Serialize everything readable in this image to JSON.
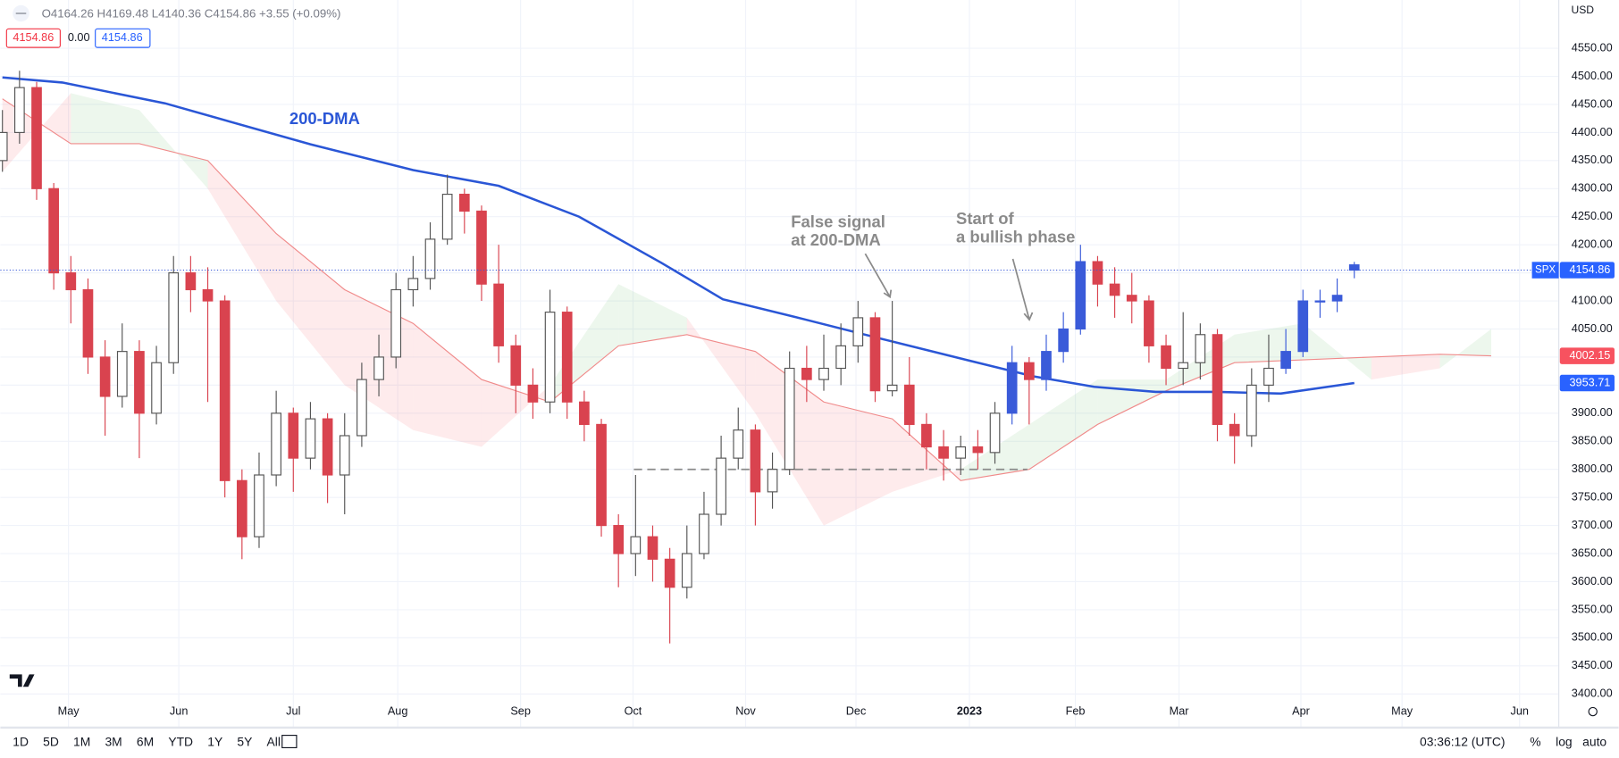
{
  "header": {
    "ohlc": "O4164.26 H4169.48 L4140.36 C4154.86 +3.55 (+0.09%)",
    "box_left": "4154.86",
    "box_mid": "0.00",
    "box_right": "4154.86",
    "currency": "USD"
  },
  "toolbar": {
    "ranges": [
      "1D",
      "5D",
      "1M",
      "3M",
      "6M",
      "YTD",
      "1Y",
      "5Y",
      "All"
    ],
    "clock": "03:36:12 (UTC)",
    "percent": "%",
    "log": "log",
    "auto": "auto"
  },
  "chart_data": {
    "type": "candlestick",
    "symbol": "SPX",
    "annotations": {
      "dma": "200-DMA",
      "false_signal": [
        "False signal",
        "at 200-DMA"
      ],
      "bullish": [
        "Start of",
        "a bullish phase"
      ]
    },
    "open": [
      4350,
      4400,
      4480,
      4300,
      4150,
      4120,
      4000,
      3930,
      4010,
      3900,
      3990,
      4150,
      4120,
      4100,
      3780,
      3680,
      3790,
      3900,
      3820,
      3890,
      3790,
      3860,
      3960,
      4000,
      4120,
      4140,
      4210,
      4290,
      4260,
      4130,
      4020,
      3950,
      3920,
      4080,
      3920,
      3880,
      3700,
      3650,
      3680,
      3640,
      3590,
      3650,
      3720,
      3820,
      3870,
      3760,
      3800,
      3980,
      3960,
      3980,
      4020,
      4070,
      3940,
      3950,
      3880,
      3840,
      3820,
      3840,
      3830,
      3900,
      3990,
      3960,
      4010,
      4050,
      4170,
      4130,
      4110,
      4100,
      4020,
      3980,
      3990,
      4040,
      3880,
      3860,
      3950,
      3980,
      4010,
      4100,
      4100,
      4164.26
    ],
    "high": [
      4440,
      4510,
      4490,
      4310,
      4180,
      4140,
      4030,
      4060,
      4030,
      4020,
      4180,
      4180,
      4160,
      4110,
      3800,
      3830,
      3940,
      3910,
      3920,
      3900,
      3900,
      3990,
      4040,
      4150,
      4180,
      4240,
      4325,
      4300,
      4270,
      4200,
      4040,
      3980,
      4120,
      4090,
      3940,
      3890,
      3720,
      3790,
      3700,
      3660,
      3700,
      3760,
      3860,
      3910,
      3880,
      3830,
      4010,
      4020,
      4040,
      4060,
      4100,
      4080,
      4100,
      4000,
      3900,
      3870,
      3860,
      3870,
      3920,
      4020,
      4000,
      4040,
      4080,
      4200,
      4180,
      4160,
      4150,
      4110,
      4040,
      4080,
      4060,
      4050,
      3900,
      3980,
      4040,
      4050,
      4120,
      4120,
      4140,
      4169.48
    ],
    "low": [
      4330,
      4380,
      4280,
      4120,
      4060,
      3970,
      3860,
      3910,
      3820,
      3880,
      3970,
      4080,
      3920,
      3750,
      3640,
      3660,
      3770,
      3760,
      3800,
      3740,
      3720,
      3840,
      3930,
      3980,
      4090,
      4120,
      4200,
      4220,
      4100,
      3990,
      3900,
      3890,
      3900,
      3890,
      3850,
      3680,
      3590,
      3610,
      3600,
      3490,
      3570,
      3640,
      3700,
      3800,
      3700,
      3730,
      3790,
      3920,
      3940,
      3950,
      3990,
      3920,
      3930,
      3860,
      3800,
      3780,
      3790,
      3800,
      3810,
      3880,
      3880,
      3940,
      3990,
      4040,
      4090,
      4070,
      4060,
      3990,
      3950,
      3950,
      3960,
      3850,
      3810,
      3840,
      3920,
      3970,
      4000,
      4070,
      4080,
      4140.36
    ],
    "close": [
      4400,
      4480,
      4300,
      4150,
      4120,
      4000,
      3930,
      4010,
      3900,
      3990,
      4150,
      4120,
      4100,
      3780,
      3680,
      3790,
      3900,
      3820,
      3890,
      3790,
      3860,
      3960,
      4000,
      4120,
      4140,
      4210,
      4290,
      4260,
      4130,
      4020,
      3950,
      3920,
      4080,
      3920,
      3880,
      3700,
      3650,
      3680,
      3640,
      3590,
      3650,
      3720,
      3820,
      3870,
      3760,
      3800,
      3980,
      3960,
      3980,
      4020,
      4070,
      3940,
      3950,
      3880,
      3840,
      3820,
      3840,
      3830,
      3900,
      3990,
      3960,
      4010,
      4050,
      4170,
      4130,
      4110,
      4100,
      4020,
      3980,
      3990,
      4040,
      3880,
      3860,
      3950,
      3980,
      4010,
      4100,
      4100,
      4110,
      4154.86
    ],
    "colors": [
      "#ffffff",
      "#ffffff",
      "#d9434f",
      "#d9434f",
      "#d9434f",
      "#d9434f",
      "#d9434f",
      "#ffffff",
      "#d9434f",
      "#ffffff",
      "#ffffff",
      "#d9434f",
      "#d9434f",
      "#d9434f",
      "#d9434f",
      "#ffffff",
      "#ffffff",
      "#d9434f",
      "#ffffff",
      "#d9434f",
      "#ffffff",
      "#ffffff",
      "#ffffff",
      "#ffffff",
      "#ffffff",
      "#ffffff",
      "#ffffff",
      "#d9434f",
      "#d9434f",
      "#d9434f",
      "#d9434f",
      "#d9434f",
      "#ffffff",
      "#d9434f",
      "#d9434f",
      "#d9434f",
      "#d9434f",
      "#ffffff",
      "#d9434f",
      "#d9434f",
      "#ffffff",
      "#ffffff",
      "#ffffff",
      "#ffffff",
      "#d9434f",
      "#ffffff",
      "#ffffff",
      "#d9434f",
      "#ffffff",
      "#ffffff",
      "#ffffff",
      "#d9434f",
      "#ffffff",
      "#d9434f",
      "#d9434f",
      "#d9434f",
      "#ffffff",
      "#d9434f",
      "#ffffff",
      "#3a5bd9",
      "#d9434f",
      "#3a5bd9",
      "#3a5bd9",
      "#3a5bd9",
      "#d9434f",
      "#d9434f",
      "#d9434f",
      "#d9434f",
      "#d9434f",
      "#ffffff",
      "#ffffff",
      "#d9434f",
      "#d9434f",
      "#ffffff",
      "#ffffff",
      "#3a5bd9",
      "#3a5bd9",
      "#3a5bd9",
      "#3a5bd9",
      "#3a5bd9"
    ],
    "dma": {
      "color": "#2a56d6",
      "x": [
        0,
        3.5,
        9.5,
        18,
        24,
        29,
        33.7,
        38.5,
        42.1,
        46.9,
        51.7,
        56.6,
        60.2,
        63.8,
        67.4,
        71,
        74.7,
        79
      ],
      "values": [
        4498,
        4489,
        4452,
        4379,
        4333,
        4305,
        4250,
        4168,
        4103,
        4067,
        4030,
        3993,
        3966,
        3947,
        3938,
        3938,
        3935,
        3953.71
      ]
    },
    "cloud": {
      "bull_color": "rgba(76,175,80,0.1)",
      "bear_color": "rgba(242,54,69,0.1)",
      "line_color": "#f08a8a",
      "x": [
        0,
        4,
        8,
        12,
        16,
        20,
        24,
        28,
        32,
        36,
        40,
        44,
        48,
        52,
        56,
        60,
        64,
        68,
        72,
        76,
        80,
        84,
        87
      ],
      "span_a": [
        4330,
        4470,
        4440,
        4300,
        4100,
        3950,
        3870,
        3840,
        3950,
        4130,
        4070,
        3900,
        3700,
        3760,
        3800,
        3880,
        3960,
        3960,
        4040,
        4060,
        3960,
        3980,
        4050
      ],
      "span_b": [
        4460,
        4380,
        4380,
        4350,
        4220,
        4120,
        4060,
        3960,
        3920,
        4020,
        4040,
        4010,
        3920,
        3890,
        3780,
        3800,
        3880,
        3940,
        3990,
        3995,
        4000,
        4005,
        4002.15
      ]
    },
    "level": {
      "value": 3800,
      "from": 36.9,
      "to": 59.9
    },
    "xlim": [
      -0.12,
      90.95
    ],
    "ylim": [
      3341,
      4636
    ],
    "xticks": [
      {
        "value": 3.86,
        "label": "May"
      },
      {
        "value": 10.31,
        "label": "Jun"
      },
      {
        "value": 17.0,
        "label": "Jul"
      },
      {
        "value": 23.1,
        "label": "Aug"
      },
      {
        "value": 30.28,
        "label": "Sep"
      },
      {
        "value": 36.85,
        "label": "Oct"
      },
      {
        "value": 43.43,
        "label": "Nov"
      },
      {
        "value": 49.88,
        "label": "Dec"
      },
      {
        "value": 56.51,
        "label": "2023"
      },
      {
        "value": 62.7,
        "label": "Feb"
      },
      {
        "value": 68.76,
        "label": "Mar"
      },
      {
        "value": 75.88,
        "label": "Apr"
      },
      {
        "value": 81.79,
        "label": "May"
      },
      {
        "value": 88.66,
        "label": "Jun"
      }
    ],
    "yticks": [
      {
        "value": 3400,
        "label": "3400.00"
      },
      {
        "value": 3450,
        "label": "3450.00"
      },
      {
        "value": 3500,
        "label": "3500.00"
      },
      {
        "value": 3550,
        "label": "3550.00"
      },
      {
        "value": 3600,
        "label": "3600.00"
      },
      {
        "value": 3650,
        "label": "3650.00"
      },
      {
        "value": 3700,
        "label": "3700.00"
      },
      {
        "value": 3750,
        "label": "3750.00"
      },
      {
        "value": 3800,
        "label": "3800.00"
      },
      {
        "value": 3850,
        "label": "3850.00"
      },
      {
        "value": 3900,
        "label": "3900.00"
      },
      {
        "value": 3950,
        "label": "3950.00"
      },
      {
        "value": 4000,
        "label": "4000.00"
      },
      {
        "value": 4050,
        "label": "4050.00"
      },
      {
        "value": 4100,
        "label": "4100.00"
      },
      {
        "value": 4150,
        "label": "4150.00"
      },
      {
        "value": 4200,
        "label": "4200.00"
      },
      {
        "value": 4250,
        "label": "4250.00"
      },
      {
        "value": 4300,
        "label": "4300.00"
      },
      {
        "value": 4350,
        "label": "4350.00"
      },
      {
        "value": 4400,
        "label": "4400.00"
      },
      {
        "value": 4450,
        "label": "4450.00"
      },
      {
        "value": 4500,
        "label": "4500.00"
      },
      {
        "value": 4550,
        "label": "4550.00"
      }
    ],
    "grid": true
  }
}
